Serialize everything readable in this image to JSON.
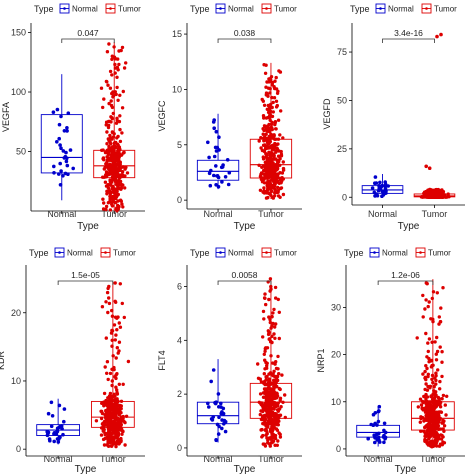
{
  "legend": {
    "title": "Type",
    "items": [
      {
        "label": "Normal",
        "color": "#0000cc"
      },
      {
        "label": "Tumor",
        "color": "#dd0000"
      }
    ]
  },
  "chart_data": [
    {
      "type": "box",
      "ylabel": "VEGFA",
      "xlabel": "Type",
      "categories": [
        "Normal",
        "Tumor"
      ],
      "yticks": [
        50,
        100,
        150
      ],
      "ylim": [
        0,
        158
      ],
      "pvalue": "0.047",
      "boxes": [
        {
          "group": "Normal",
          "whisker_low": 9,
          "q1": 32,
          "median": 45,
          "q3": 81,
          "whisker_high": 115,
          "n": 30,
          "outliers": []
        },
        {
          "group": "Tumor",
          "whisker_low": 0,
          "q1": 28,
          "median": 38,
          "q3": 51,
          "whisker_high": 142,
          "n": 400,
          "outliers": []
        }
      ]
    },
    {
      "type": "box",
      "ylabel": "VEGFC",
      "xlabel": "Type",
      "categories": [
        "Normal",
        "Tumor"
      ],
      "yticks": [
        0,
        5,
        10,
        15
      ],
      "ylim": [
        -0.8,
        16
      ],
      "pvalue": "0.038",
      "boxes": [
        {
          "group": "Normal",
          "whisker_low": 1.0,
          "q1": 1.8,
          "median": 2.6,
          "q3": 3.6,
          "whisker_high": 7.8,
          "n": 30,
          "outliers": []
        },
        {
          "group": "Tumor",
          "whisker_low": 0.1,
          "q1": 2.0,
          "median": 3.2,
          "q3": 5.5,
          "whisker_high": 12.4,
          "n": 400,
          "outliers": []
        }
      ]
    },
    {
      "type": "box",
      "ylabel": "VEGFD",
      "xlabel": "Type",
      "categories": [
        "Normal",
        "Tumor"
      ],
      "yticks": [
        0,
        25,
        50,
        75
      ],
      "ylim": [
        -4,
        90
      ],
      "pvalue": "3.4e-16",
      "boxes": [
        {
          "group": "Normal",
          "whisker_low": 0.5,
          "q1": 2.0,
          "median": 3.8,
          "q3": 6.0,
          "whisker_high": 12.0,
          "n": 30,
          "outliers": []
        },
        {
          "group": "Tumor",
          "whisker_low": 0,
          "q1": 0.2,
          "median": 0.7,
          "q3": 1.7,
          "whisker_high": 4.0,
          "n": 400,
          "outliers": [
            84,
            83,
            16,
            15
          ]
        }
      ]
    },
    {
      "type": "box",
      "ylabel": "KDR",
      "xlabel": "Type",
      "categories": [
        "Normal",
        "Tumor"
      ],
      "yticks": [
        0,
        10,
        20
      ],
      "ylim": [
        -1,
        27
      ],
      "pvalue": "1.5e-05",
      "boxes": [
        {
          "group": "Normal",
          "whisker_low": 0.7,
          "q1": 2.0,
          "median": 2.8,
          "q3": 3.6,
          "whisker_high": 7.4,
          "n": 30,
          "outliers": []
        },
        {
          "group": "Tumor",
          "whisker_low": 0.3,
          "q1": 3.2,
          "median": 4.7,
          "q3": 7.0,
          "whisker_high": 24.5,
          "n": 400,
          "outliers": []
        }
      ]
    },
    {
      "type": "box",
      "ylabel": "FLT4",
      "xlabel": "Type",
      "categories": [
        "Normal",
        "Tumor"
      ],
      "yticks": [
        0,
        2,
        4,
        6
      ],
      "ylim": [
        -0.3,
        6.8
      ],
      "pvalue": "0.0058",
      "boxes": [
        {
          "group": "Normal",
          "whisker_low": 0.2,
          "q1": 0.9,
          "median": 1.2,
          "q3": 1.7,
          "whisker_high": 3.3,
          "n": 30,
          "outliers": []
        },
        {
          "group": "Tumor",
          "whisker_low": 0.05,
          "q1": 1.1,
          "median": 1.7,
          "q3": 2.4,
          "whisker_high": 6.3,
          "n": 400,
          "outliers": []
        }
      ]
    },
    {
      "type": "box",
      "ylabel": "NRP1",
      "xlabel": "Type",
      "categories": [
        "Normal",
        "Tumor"
      ],
      "yticks": [
        0,
        10,
        20,
        30
      ],
      "ylim": [
        -1.5,
        39
      ],
      "pvalue": "1.2e-06",
      "boxes": [
        {
          "group": "Normal",
          "whisker_low": 0.5,
          "q1": 2.5,
          "median": 3.5,
          "q3": 5.0,
          "whisker_high": 9.0,
          "n": 30,
          "outliers": []
        },
        {
          "group": "Tumor",
          "whisker_low": 0.3,
          "q1": 4.0,
          "median": 6.5,
          "q3": 10.0,
          "whisker_high": 36.0,
          "n": 400,
          "outliers": []
        }
      ]
    }
  ]
}
